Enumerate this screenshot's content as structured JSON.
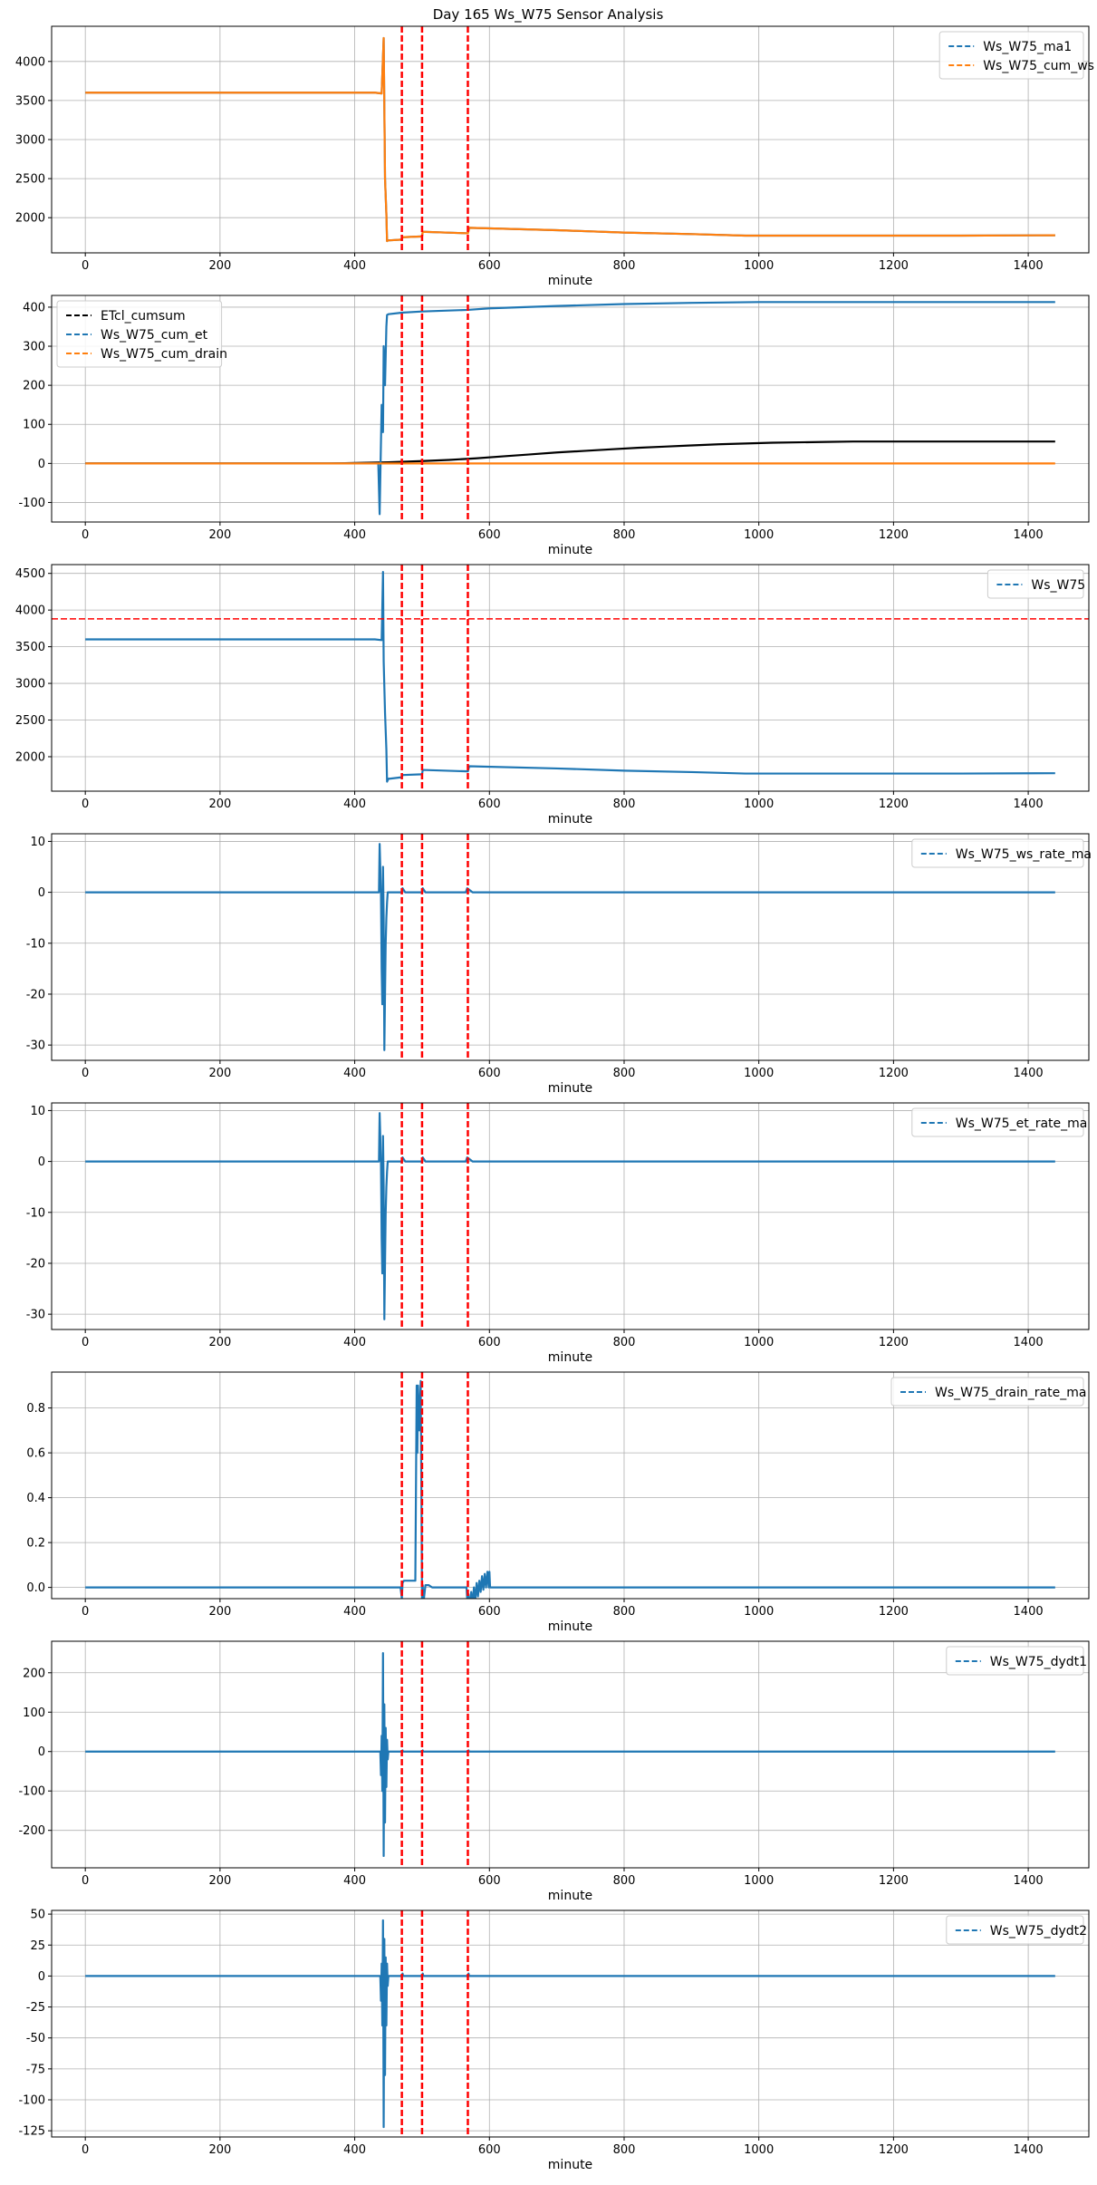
{
  "figure": {
    "title": "Day 165 Ws_W75 Sensor Analysis"
  },
  "colors": {
    "blue": "#1f77b4",
    "orange": "#ff7f0e",
    "black": "#000000",
    "red": "#ff0000",
    "grid": "#b0b0b0"
  },
  "chart_data": [
    {
      "type": "line",
      "title": "",
      "xlabel": "minute",
      "ylabel": "",
      "xlim": [
        -50,
        1490
      ],
      "ylim": [
        1550,
        4450
      ],
      "xticks": [
        0,
        200,
        400,
        600,
        800,
        1000,
        1200,
        1400
      ],
      "yticks": [
        2000,
        2500,
        3000,
        3500,
        4000
      ],
      "grid": true,
      "legend_position": "upper right",
      "vlines": [
        470,
        500,
        568
      ],
      "hlines": [],
      "series": [
        {
          "name": "Ws_W75_ma1",
          "color": "#1f77b4",
          "dash": true,
          "x": [
            0,
            430,
            440,
            443,
            445,
            447,
            448,
            450,
            452,
            470,
            471,
            500,
            501,
            568,
            570,
            700,
            800,
            900,
            980,
            1100,
            1200,
            1300,
            1440
          ],
          "y": [
            3600,
            3600,
            3590,
            4300,
            2500,
            2050,
            1700,
            1710,
            1710,
            1720,
            1750,
            1760,
            1820,
            1800,
            1870,
            1840,
            1810,
            1790,
            1770,
            1770,
            1770,
            1770,
            1775
          ]
        },
        {
          "name": "Ws_W75_cum_ws",
          "color": "#ff7f0e",
          "dash": false,
          "x": [
            0,
            430,
            440,
            443,
            445,
            447,
            448,
            450,
            452,
            470,
            471,
            500,
            501,
            568,
            570,
            700,
            800,
            900,
            980,
            1100,
            1200,
            1300,
            1440
          ],
          "y": [
            3600,
            3600,
            3590,
            4300,
            2500,
            2050,
            1700,
            1710,
            1710,
            1720,
            1750,
            1760,
            1820,
            1800,
            1870,
            1840,
            1810,
            1790,
            1770,
            1770,
            1770,
            1770,
            1775
          ]
        }
      ]
    },
    {
      "type": "line",
      "title": "",
      "xlabel": "minute",
      "ylabel": "",
      "xlim": [
        -50,
        1490
      ],
      "ylim": [
        -150,
        430
      ],
      "xticks": [
        0,
        200,
        400,
        600,
        800,
        1000,
        1200,
        1400
      ],
      "yticks": [
        -100,
        0,
        100,
        200,
        300,
        400
      ],
      "grid": true,
      "legend_position": "upper left",
      "vlines": [
        470,
        500,
        568
      ],
      "hlines": [],
      "series": [
        {
          "name": "ETcl_cumsum",
          "color": "#000000",
          "dash": false,
          "x": [
            0,
            360,
            400,
            450,
            500,
            540,
            580,
            620,
            660,
            700,
            740,
            780,
            820,
            860,
            900,
            940,
            980,
            1020,
            1060,
            1100,
            1140,
            1180,
            1440
          ],
          "y": [
            0,
            0,
            1,
            3,
            6,
            9,
            13,
            18,
            23,
            28,
            32,
            36,
            40,
            43,
            46,
            49,
            51,
            53,
            54,
            55,
            56,
            56,
            56
          ]
        },
        {
          "name": "Ws_W75_cum_et",
          "color": "#1f77b4",
          "dash": true,
          "x": [
            0,
            435,
            437,
            440,
            442,
            443,
            445,
            447,
            448,
            450,
            470,
            500,
            568,
            600,
            700,
            800,
            900,
            1000,
            1100,
            1440
          ],
          "y": [
            0,
            0,
            -130,
            150,
            80,
            300,
            200,
            350,
            380,
            382,
            386,
            389,
            393,
            397,
            403,
            408,
            411,
            413,
            413,
            413
          ]
        },
        {
          "name": "Ws_W75_cum_drain",
          "color": "#ff7f0e",
          "dash": false,
          "x": [
            0,
            1440
          ],
          "y": [
            0,
            0
          ]
        }
      ]
    },
    {
      "type": "line",
      "title": "",
      "xlabel": "minute",
      "ylabel": "",
      "xlim": [
        -50,
        1490
      ],
      "ylim": [
        1530,
        4620
      ],
      "xticks": [
        0,
        200,
        400,
        600,
        800,
        1000,
        1200,
        1400
      ],
      "yticks": [
        2000,
        2500,
        3000,
        3500,
        4000,
        4500
      ],
      "grid": true,
      "legend_position": "upper right",
      "vlines": [
        470,
        500,
        568
      ],
      "hlines": [
        3880
      ],
      "series": [
        {
          "name": "Ws_W75",
          "color": "#1f77b4",
          "dash": true,
          "x": [
            0,
            430,
            440,
            442,
            443,
            445,
            447,
            448,
            450,
            452,
            470,
            471,
            500,
            501,
            568,
            570,
            700,
            800,
            900,
            980,
            1100,
            1200,
            1300,
            1440
          ],
          "y": [
            3600,
            3600,
            3590,
            4520,
            3300,
            2600,
            2100,
            1660,
            1700,
            1700,
            1720,
            1750,
            1760,
            1820,
            1800,
            1870,
            1840,
            1810,
            1790,
            1770,
            1770,
            1770,
            1770,
            1775
          ]
        }
      ]
    },
    {
      "type": "line",
      "title": "",
      "xlabel": "minute",
      "ylabel": "",
      "xlim": [
        -50,
        1490
      ],
      "ylim": [
        -33,
        11.5
      ],
      "xticks": [
        0,
        200,
        400,
        600,
        800,
        1000,
        1200,
        1400
      ],
      "yticks": [
        -30,
        -20,
        -10,
        0,
        10
      ],
      "grid": true,
      "legend_position": "upper right",
      "vlines": [
        470,
        500,
        568
      ],
      "hlines": [],
      "series": [
        {
          "name": "Ws_W75_ws_rate_ma",
          "color": "#1f77b4",
          "dash": true,
          "x": [
            0,
            436,
            437,
            439,
            440,
            441,
            442,
            443,
            444,
            445,
            446,
            447,
            448,
            449,
            450,
            452,
            470,
            471,
            475,
            500,
            501,
            505,
            565,
            567,
            570,
            575,
            1440
          ],
          "y": [
            0,
            0,
            9.5,
            0,
            -15,
            -22,
            5,
            -5,
            -31,
            -20,
            -10,
            -5,
            -2,
            0,
            0,
            0,
            0,
            0.8,
            0,
            0,
            0.8,
            0,
            0,
            0.8,
            0.5,
            0,
            0
          ]
        }
      ]
    },
    {
      "type": "line",
      "title": "",
      "xlabel": "minute",
      "ylabel": "",
      "xlim": [
        -50,
        1490
      ],
      "ylim": [
        -33,
        11.5
      ],
      "xticks": [
        0,
        200,
        400,
        600,
        800,
        1000,
        1200,
        1400
      ],
      "yticks": [
        -30,
        -20,
        -10,
        0,
        10
      ],
      "grid": true,
      "legend_position": "upper right",
      "vlines": [
        470,
        500,
        568
      ],
      "hlines": [],
      "series": [
        {
          "name": "Ws_W75_et_rate_ma",
          "color": "#1f77b4",
          "dash": true,
          "x": [
            0,
            436,
            437,
            439,
            440,
            441,
            442,
            443,
            444,
            445,
            446,
            447,
            448,
            449,
            450,
            452,
            470,
            471,
            475,
            500,
            501,
            505,
            565,
            567,
            570,
            575,
            1440
          ],
          "y": [
            0,
            0,
            9.5,
            0,
            -15,
            -22,
            5,
            -5,
            -31,
            -20,
            -10,
            -5,
            -2,
            0,
            0,
            0,
            0,
            0.8,
            0,
            0,
            0.8,
            0,
            0,
            0.8,
            0.5,
            0,
            0
          ]
        }
      ]
    },
    {
      "type": "line",
      "title": "",
      "xlabel": "minute",
      "ylabel": "",
      "xlim": [
        -50,
        1490
      ],
      "ylim": [
        -0.05,
        0.96
      ],
      "xticks": [
        0,
        200,
        400,
        600,
        800,
        1000,
        1200,
        1400
      ],
      "yticks": [
        0.0,
        0.2,
        0.4,
        0.6,
        0.8
      ],
      "grid": true,
      "legend_position": "upper right",
      "vlines": [
        470,
        500,
        568
      ],
      "hlines": [],
      "series": [
        {
          "name": "Ws_W75_drain_rate_ma",
          "color": "#1f77b4",
          "dash": true,
          "x": [
            0,
            468,
            470,
            471,
            473,
            474,
            476,
            478,
            480,
            485,
            490,
            492,
            493,
            494,
            496,
            498,
            500,
            501,
            502,
            505,
            510,
            515,
            525,
            530,
            566,
            568,
            569,
            571,
            573,
            575,
            577,
            579,
            581,
            583,
            585,
            587,
            589,
            591,
            593,
            595,
            597,
            599,
            600,
            601,
            1440
          ],
          "y": [
            0,
            0,
            -0.05,
            0.02,
            0.03,
            0.03,
            0.03,
            0.03,
            0.03,
            0.03,
            0.03,
            0.9,
            0.6,
            0.9,
            0.7,
            0.92,
            -0.08,
            0.01,
            -0.07,
            0.01,
            0.01,
            0.0,
            0.0,
            0.0,
            0.0,
            -0.1,
            -0.03,
            -0.1,
            -0.02,
            -0.08,
            0.0,
            -0.06,
            0.02,
            -0.04,
            0.03,
            -0.02,
            0.05,
            -0.01,
            0.06,
            0.0,
            0.07,
            0.0,
            0.07,
            0.0,
            0
          ]
        }
      ]
    },
    {
      "type": "line",
      "title": "",
      "xlabel": "minute",
      "ylabel": "",
      "xlim": [
        -50,
        1490
      ],
      "ylim": [
        -295,
        280
      ],
      "xticks": [
        0,
        200,
        400,
        600,
        800,
        1000,
        1200,
        1400
      ],
      "yticks": [
        -200,
        -100,
        0,
        100,
        200
      ],
      "grid": true,
      "legend_position": "upper right",
      "vlines": [
        470,
        500,
        568
      ],
      "hlines": [],
      "series": [
        {
          "name": "Ws_W75_dydt1",
          "color": "#1f77b4",
          "dash": true,
          "x": [
            0,
            438,
            439,
            440,
            441,
            442,
            443,
            444,
            445,
            446,
            447,
            448,
            449,
            450,
            470,
            471,
            472,
            500,
            501,
            502,
            568,
            569,
            570,
            1440
          ],
          "y": [
            0,
            0,
            -60,
            40,
            -100,
            250,
            -265,
            120,
            -180,
            60,
            -90,
            30,
            -20,
            0,
            0,
            3,
            0,
            0,
            3,
            0,
            0,
            3,
            0,
            0
          ]
        }
      ]
    },
    {
      "type": "line",
      "title": "",
      "xlabel": "minute",
      "ylabel": "",
      "xlim": [
        -50,
        1490
      ],
      "ylim": [
        -130,
        53
      ],
      "xticks": [
        0,
        200,
        400,
        600,
        800,
        1000,
        1200,
        1400
      ],
      "yticks": [
        -125,
        -100,
        -75,
        -50,
        -25,
        0,
        25,
        50
      ],
      "grid": true,
      "legend_position": "upper right",
      "vlines": [
        470,
        500,
        568
      ],
      "hlines": [],
      "series": [
        {
          "name": "Ws_W75_dydt2",
          "color": "#1f77b4",
          "dash": true,
          "x": [
            0,
            438,
            439,
            440,
            441,
            442,
            443,
            444,
            445,
            446,
            447,
            448,
            449,
            450,
            470,
            471,
            472,
            500,
            501,
            502,
            568,
            569,
            570,
            1440
          ],
          "y": [
            0,
            0,
            -20,
            10,
            -40,
            45,
            -122,
            30,
            -80,
            15,
            -40,
            10,
            -8,
            0,
            0,
            2,
            0,
            0,
            2,
            0,
            0,
            2,
            0,
            0
          ]
        }
      ]
    }
  ]
}
